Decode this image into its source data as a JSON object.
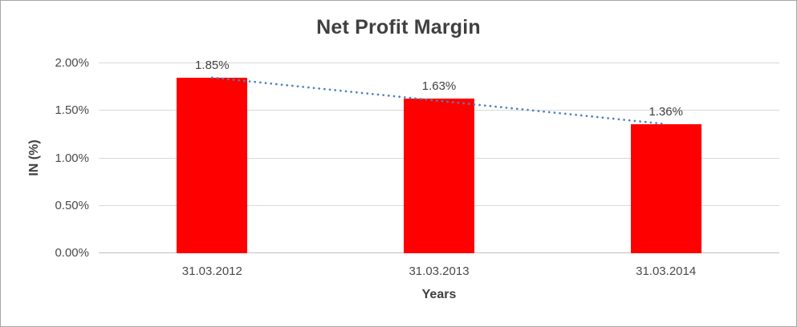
{
  "window": {
    "background": "#ffffff",
    "border_color": "#a6a6a6"
  },
  "chart_data": {
    "type": "bar",
    "title": "Net Profit Margin",
    "xlabel": "Years",
    "ylabel": "IN (%)",
    "categories": [
      "31.03.2012",
      "31.03.2013",
      "31.03.2014"
    ],
    "values": [
      1.85,
      1.63,
      1.36
    ],
    "data_labels": [
      "1.85%",
      "1.63%",
      "1.36%"
    ],
    "ylim": [
      0,
      2
    ],
    "ytick_labels": [
      "0.00%",
      "0.50%",
      "1.00%",
      "1.50%",
      "2.00%"
    ],
    "grid": true,
    "legend": "none",
    "bar_color": "#ff0000",
    "gridline_color": "#d9d9d9",
    "axis_line_color": "#bfbfbf",
    "title_color": "#404040",
    "tick_color": "#4a4a4a",
    "trendline": {
      "type": "linear",
      "line_style": "dotted",
      "color": "#4e81bd",
      "start_value": 1.85,
      "end_value": 1.36
    }
  }
}
